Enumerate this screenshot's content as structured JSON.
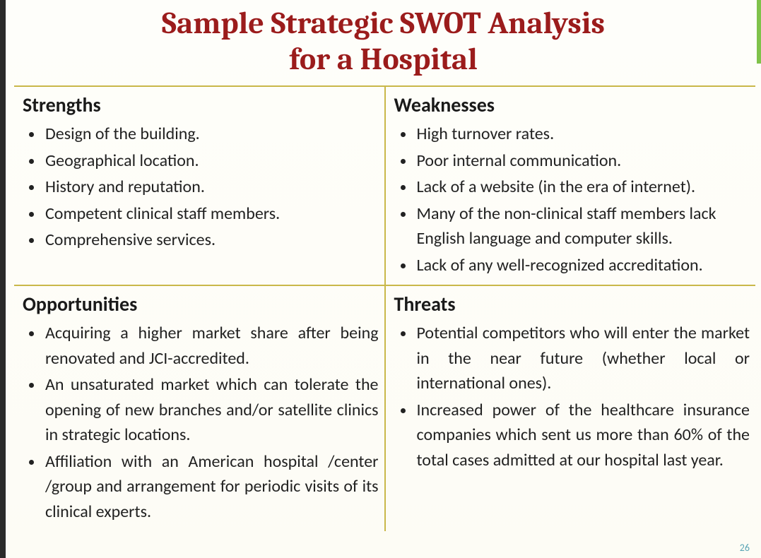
{
  "title_line1": "Sample Strategic SWOT Analysis",
  "title_line2": "for a Hospital",
  "title_color": "#9b1c1c",
  "accent_border_color": "#c9b84a",
  "body_text_color": "#222222",
  "background_color": "#fefdf8",
  "slide_number": "26",
  "quadrants": {
    "strengths": {
      "header": "Strengths",
      "items": [
        "Design of the building.",
        "Geographical location.",
        "History and reputation.",
        "Competent clinical staff members.",
        "Comprehensive services."
      ]
    },
    "weaknesses": {
      "header": "Weaknesses",
      "items": [
        "High turnover rates.",
        "Poor internal communication.",
        "Lack of a website (in the era of internet).",
        "Many of the non-clinical staff members lack English language and computer skills.",
        "Lack of any well-recognized accreditation."
      ]
    },
    "opportunities": {
      "header": "Opportunities",
      "items": [
        "Acquiring a higher market share after being renovated and JCI-accredited.",
        "An unsaturated market which can tolerate the opening of new branches and/or satellite clinics in strategic locations.",
        "Affiliation with an American hospital /center /group and arrangement for periodic visits of its clinical experts."
      ]
    },
    "threats": {
      "header": "Threats",
      "items": [
        "Potential competitors who will enter the market in the near future (whether local or international ones).",
        "Increased power of the healthcare insurance companies which sent us more than 60% of the total cases admitted at our hospital last year."
      ]
    }
  }
}
